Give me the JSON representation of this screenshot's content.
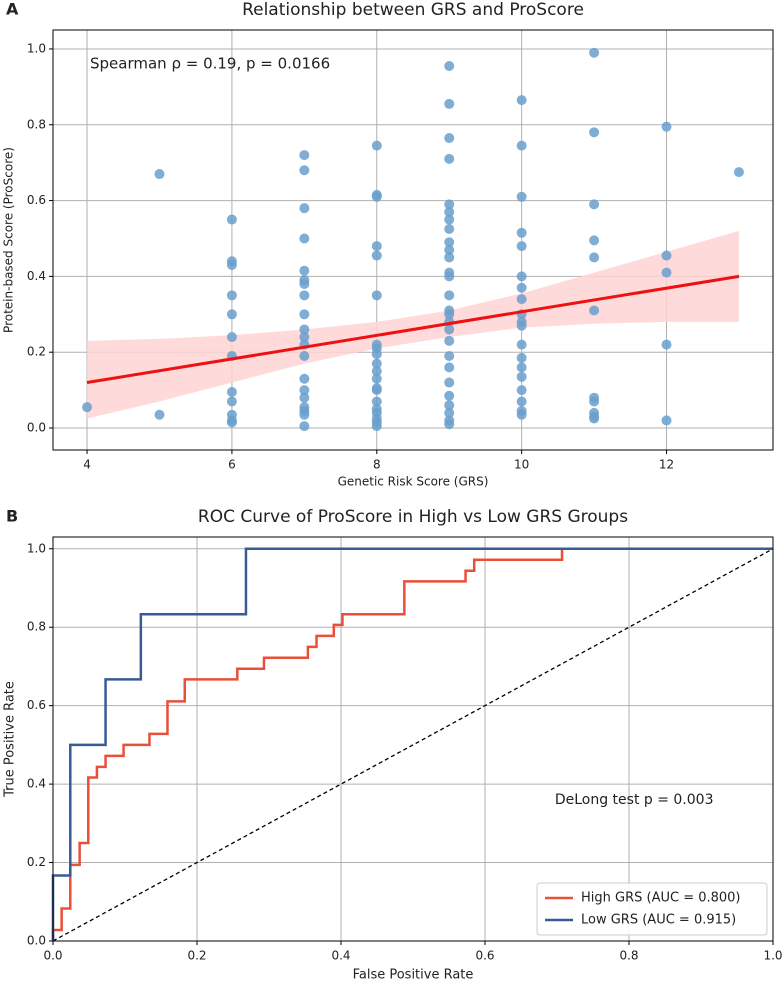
{
  "chart_data": [
    {
      "type": "scatter",
      "panel_label": "A",
      "title": "Relationship between GRS and ProScore",
      "xlabel": "Genetic Risk Score (GRS)",
      "ylabel": "Protein-based Score (ProScore)",
      "annotation": "Spearman ρ = 0.19, p = 0.0166",
      "color": "#6a9fcc",
      "x": [
        4,
        5,
        5,
        6,
        6,
        6,
        6,
        6,
        6,
        6,
        6,
        6,
        6,
        6,
        6,
        7,
        7,
        7,
        7,
        7,
        7,
        7,
        7,
        7,
        7,
        7,
        7,
        7,
        7,
        7,
        7,
        7,
        7,
        7,
        7,
        8,
        8,
        8,
        8,
        8,
        8,
        8,
        8,
        8,
        8,
        8,
        8,
        8,
        8,
        8,
        8,
        8,
        8,
        8,
        8,
        9,
        9,
        9,
        9,
        9,
        9,
        9,
        9,
        9,
        9,
        9,
        9,
        9,
        9,
        9,
        9,
        9,
        9,
        9,
        9,
        9,
        9,
        9,
        9,
        9,
        9,
        9,
        10,
        10,
        10,
        10,
        10,
        10,
        10,
        10,
        10,
        10,
        10,
        10,
        10,
        10,
        10,
        10,
        10,
        10,
        10,
        11,
        11,
        11,
        11,
        11,
        11,
        11,
        11,
        11,
        11,
        11,
        12,
        12,
        12,
        12,
        12,
        13
      ],
      "y": [
        0.055,
        0.67,
        0.035,
        0.55,
        0.44,
        0.43,
        0.35,
        0.3,
        0.24,
        0.19,
        0.095,
        0.07,
        0.035,
        0.02,
        0.015,
        0.72,
        0.68,
        0.58,
        0.5,
        0.415,
        0.39,
        0.38,
        0.35,
        0.3,
        0.26,
        0.24,
        0.22,
        0.19,
        0.13,
        0.1,
        0.08,
        0.055,
        0.045,
        0.035,
        0.005,
        0.745,
        0.615,
        0.61,
        0.48,
        0.455,
        0.35,
        0.22,
        0.21,
        0.195,
        0.17,
        0.15,
        0.13,
        0.105,
        0.1,
        0.07,
        0.05,
        0.04,
        0.025,
        0.015,
        0.005,
        0.955,
        0.855,
        0.765,
        0.71,
        0.59,
        0.57,
        0.55,
        0.525,
        0.49,
        0.47,
        0.45,
        0.41,
        0.4,
        0.35,
        0.31,
        0.3,
        0.28,
        0.26,
        0.23,
        0.19,
        0.16,
        0.12,
        0.085,
        0.06,
        0.04,
        0.02,
        0.01,
        0.865,
        0.745,
        0.61,
        0.515,
        0.48,
        0.4,
        0.37,
        0.34,
        0.3,
        0.28,
        0.27,
        0.22,
        0.185,
        0.16,
        0.135,
        0.1,
        0.07,
        0.045,
        0.035,
        0.99,
        0.78,
        0.59,
        0.495,
        0.45,
        0.31,
        0.08,
        0.07,
        0.04,
        0.03,
        0.025,
        0.795,
        0.455,
        0.41,
        0.22,
        0.02,
        0.675
      ],
      "fit": {
        "x": [
          4,
          13
        ],
        "y": [
          0.12,
          0.4
        ],
        "color": "#ee1111"
      },
      "band": {
        "x": [
          4,
          5,
          6,
          7,
          8,
          9,
          10,
          11,
          12,
          13
        ],
        "lower": [
          0.025,
          0.07,
          0.12,
          0.17,
          0.21,
          0.24,
          0.265,
          0.275,
          0.28,
          0.28
        ],
        "upper": [
          0.23,
          0.235,
          0.245,
          0.26,
          0.28,
          0.31,
          0.355,
          0.41,
          0.465,
          0.52
        ],
        "color": "#ffd3d3"
      },
      "xlim": [
        3.53,
        13.47
      ],
      "ylim": [
        -0.058,
        1.05
      ],
      "xticks": [
        4,
        6,
        8,
        10,
        12
      ],
      "yticks": [
        {
          "value": 0,
          "label": "0.0"
        },
        0.2,
        0.4,
        0.6,
        0.8,
        {
          "value": 1,
          "label": "1.0"
        }
      ],
      "grid": true
    },
    {
      "type": "line",
      "panel_label": "B",
      "title": "ROC Curve of ProScore in High vs Low GRS Groups",
      "xlabel": "False Positive Rate",
      "ylabel": "True Positive Rate",
      "annotation": "DeLong test p = 0.003",
      "series": [
        {
          "name": "High GRS (AUC = 0.800)",
          "color": "#e8503a",
          "x": [
            0,
            0,
            0.012,
            0.012,
            0.024,
            0.024,
            0.037,
            0.037,
            0.049,
            0.049,
            0.061,
            0.061,
            0.073,
            0.073,
            0.098,
            0.098,
            0.134,
            0.134,
            0.159,
            0.159,
            0.183,
            0.183,
            0.256,
            0.256,
            0.293,
            0.293,
            0.354,
            0.354,
            0.366,
            0.366,
            0.39,
            0.39,
            0.402,
            0.402,
            0.488,
            0.488,
            0.573,
            0.573,
            0.585,
            0.585,
            0.707,
            0.707,
            1
          ],
          "values": [
            0,
            0.028,
            0.028,
            0.083,
            0.083,
            0.194,
            0.194,
            0.25,
            0.25,
            0.417,
            0.417,
            0.444,
            0.444,
            0.472,
            0.472,
            0.5,
            0.5,
            0.528,
            0.528,
            0.611,
            0.611,
            0.667,
            0.667,
            0.694,
            0.694,
            0.722,
            0.722,
            0.75,
            0.75,
            0.778,
            0.778,
            0.806,
            0.806,
            0.833,
            0.833,
            0.917,
            0.917,
            0.944,
            0.944,
            0.972,
            0.972,
            1,
            1
          ]
        },
        {
          "name": "Low GRS (AUC = 0.915)",
          "color": "#3a5a94",
          "x": [
            0,
            0,
            0.024,
            0.024,
            0.073,
            0.073,
            0.122,
            0.122,
            0.268,
            0.268,
            1
          ],
          "values": [
            0,
            0.167,
            0.167,
            0.5,
            0.5,
            0.667,
            0.667,
            0.833,
            0.833,
            1,
            1
          ]
        }
      ],
      "reference_line": {
        "x": [
          0,
          1
        ],
        "values": [
          0,
          1
        ],
        "color": "#000000",
        "dashed": true
      },
      "xlim": [
        0,
        1
      ],
      "ylim": [
        0,
        1.03
      ],
      "xticks": [
        {
          "value": 0,
          "label": "0.0"
        },
        0.2,
        0.4,
        0.6,
        0.8,
        {
          "value": 1,
          "label": "1.0"
        }
      ],
      "yticks": [
        {
          "value": 0,
          "label": "0.0"
        },
        0.2,
        0.4,
        0.6,
        0.8,
        {
          "value": 1,
          "label": "1.0"
        }
      ],
      "grid": true,
      "legend": "lower right"
    }
  ]
}
